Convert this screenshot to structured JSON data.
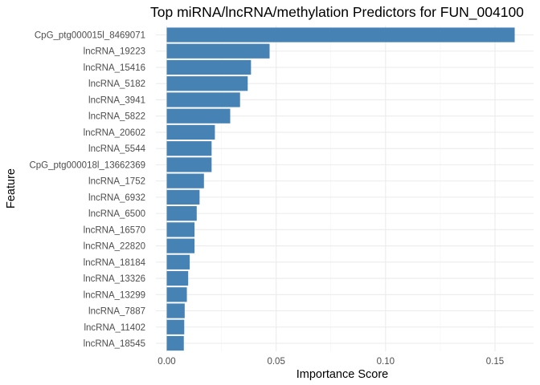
{
  "chart_data": {
    "type": "bar",
    "orientation": "horizontal",
    "title": "Top miRNA/lncRNA/methylation Predictors for FUN_004100",
    "xlabel": "Importance Score",
    "ylabel": "Feature",
    "xlim": [
      0,
      0.166
    ],
    "xticks": [
      0,
      0.05,
      0.1,
      0.15
    ],
    "xtick_labels": [
      "0.00",
      "0.05",
      "0.10",
      "0.15"
    ],
    "grid": true,
    "bar_color": "#4682b4",
    "categories": [
      "CpG_ptg000015l_8469071",
      "lncRNA_19223",
      "lncRNA_15416",
      "lncRNA_5182",
      "lncRNA_3941",
      "lncRNA_5822",
      "lncRNA_20602",
      "lncRNA_5544",
      "CpG_ptg000018l_13662369",
      "lncRNA_1752",
      "lncRNA_6932",
      "lncRNA_6500",
      "lncRNA_16570",
      "lncRNA_22820",
      "lncRNA_18184",
      "lncRNA_13326",
      "lncRNA_13299",
      "lncRNA_7887",
      "lncRNA_11402",
      "lncRNA_18545"
    ],
    "values": [
      0.159,
      0.047,
      0.0385,
      0.037,
      0.0335,
      0.029,
      0.022,
      0.0205,
      0.0205,
      0.017,
      0.015,
      0.0137,
      0.0127,
      0.0127,
      0.0105,
      0.0098,
      0.0092,
      0.0082,
      0.008,
      0.0078
    ]
  }
}
